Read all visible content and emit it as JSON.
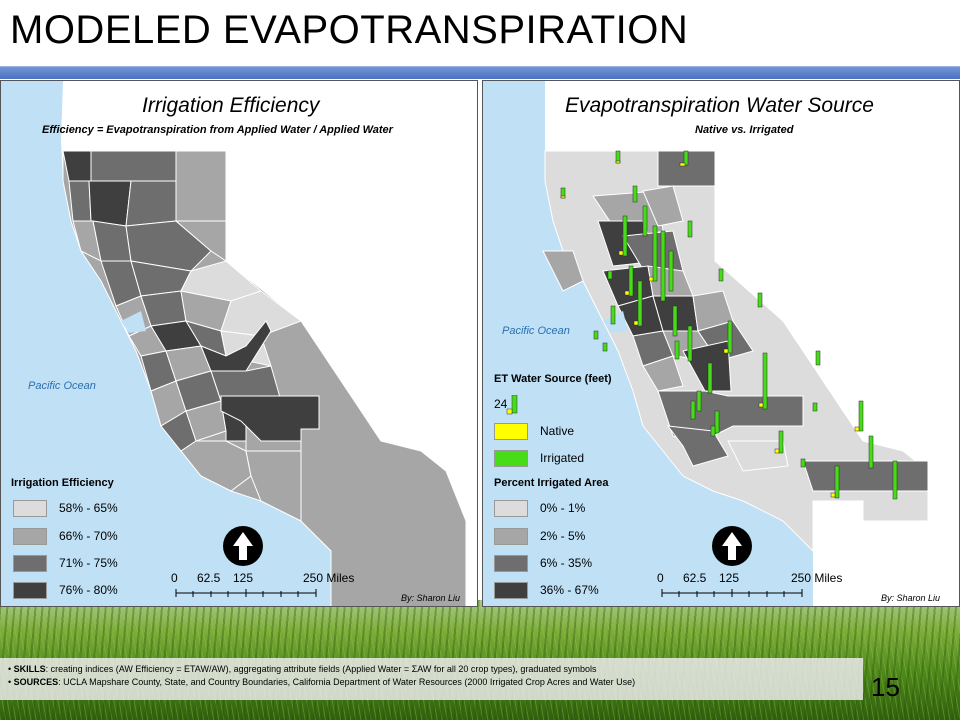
{
  "slide": {
    "title": "MODELED EVAPOTRANSPIRATION",
    "page_number": "15"
  },
  "colors": {
    "ocean": "#bfe0f5",
    "class1": "#dcdcdc",
    "class2": "#a6a6a6",
    "class3": "#6e6e6e",
    "class4": "#3f3f3f",
    "native": "#ffff00",
    "irrigated": "#46dc18",
    "title_bar": "#4a70c0"
  },
  "left_map": {
    "title": "Irrigation Efficiency",
    "subtitle": "Efficiency =  Evapotranspiration from Applied Water / Applied Water",
    "ocean_label": "Pacific Ocean",
    "legend_title": "Irrigation Efficiency",
    "legend": [
      {
        "label": "58% - 65%"
      },
      {
        "label": "66% - 70%"
      },
      {
        "label": "71% - 75%"
      },
      {
        "label": "76% - 80%"
      }
    ],
    "scale": {
      "ticks": [
        "0",
        "62.5",
        "125",
        "250 Miles"
      ]
    },
    "byline": "By: Sharon Liu"
  },
  "right_map": {
    "title": "Evapotranspiration Water Source",
    "subtitle": "Native vs. Irrigated",
    "ocean_label": "Pacific Ocean",
    "symbol_legend_title": "ET Water Source (feet)",
    "symbol_value": "24",
    "native_label": "Native",
    "irrigated_label": "Irrigated",
    "area_legend_title": "Percent Irrigated Area",
    "legend": [
      {
        "label": "0% - 1%"
      },
      {
        "label": "2% - 5%"
      },
      {
        "label": "6% - 35%"
      },
      {
        "label": "36% - 67%"
      }
    ],
    "scale": {
      "ticks": [
        "0",
        "62.5",
        "125",
        "250 Miles"
      ]
    },
    "byline": "By: Sharon Liu"
  },
  "footer": {
    "skills_label": "SKILLS",
    "skills_text": ": creating indices (AW Efficiency = ETAW/AW), aggregating attribute fields (Applied Water = ΣAW for all 20 crop types), graduated symbols",
    "sources_label": "SOURCES",
    "sources_text": ": UCLA Mapshare County, State, and Country Boundaries, California Department of Water Resources (2000 Irrigated Crop Acres and Water Use)"
  }
}
